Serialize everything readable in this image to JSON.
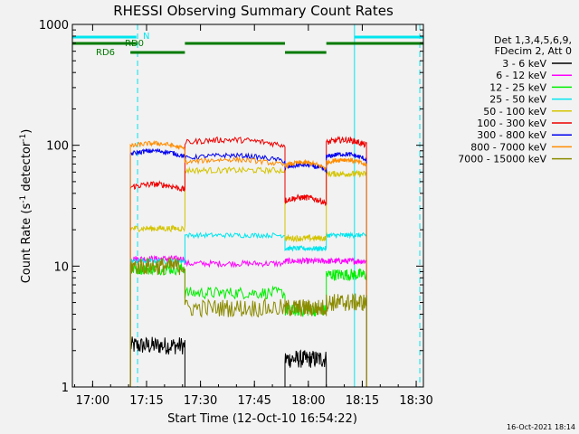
{
  "chart_data": {
    "type": "line",
    "title": "RHESSI Observing Summary Count Rates",
    "xlabel": "Start Time (12-Oct-10 16:54:22)",
    "ylabel_main": "Count Rate (s",
    "ylabel_sup1": "-1",
    "ylabel_mid": " detector",
    "ylabel_sup2": "-1",
    "ylabel_end": ")",
    "y_scale": "log",
    "xlim": [
      "16:54:22",
      "18:32:00"
    ],
    "ylim": [
      1,
      1000
    ],
    "x_ticks": [
      "17:00",
      "17:15",
      "17:30",
      "17:45",
      "18:00",
      "18:15",
      "18:30"
    ],
    "y_ticks": [
      "1",
      "10",
      "100",
      "1000"
    ],
    "legend_header": [
      "Det 1,3,4,5,6,9,",
      "FDecim 2, Att 0"
    ],
    "legend_placement": "right",
    "footer_date": "16-Oct-2021 18:14",
    "flag_labels": [
      "N",
      "RD0",
      "RD6"
    ],
    "series": [
      {
        "name": "3 - 6 keV",
        "color": "#000000"
      },
      {
        "name": "6 - 12 keV",
        "color": "#ff00ff"
      },
      {
        "name": "12 - 25 keV",
        "color": "#00ee00"
      },
      {
        "name": "25 - 50 keV",
        "color": "#00e5ee"
      },
      {
        "name": "50 - 100 keV",
        "color": "#d4c400"
      },
      {
        "name": "100 - 300 keV",
        "color": "#ee0000"
      },
      {
        "name": "300 - 800 keV",
        "color": "#0000ee"
      },
      {
        "name": "800 - 7000 keV",
        "color": "#ff8c00"
      },
      {
        "name": "7000 - 15000 keV",
        "color": "#8b8b00"
      }
    ],
    "segments": [
      {
        "start": "17:10:30",
        "end": "17:25:40",
        "values": [
          2.2,
          11.5,
          9.5,
          11,
          20.5,
          45,
          85,
          98,
          10
        ]
      },
      {
        "start": "17:25:40",
        "end": "17:53:30",
        "values": [
          1,
          10.5,
          6,
          18,
          62,
          105,
          78,
          72,
          4.5
        ]
      },
      {
        "start": "17:53:30",
        "end": "18:05:00",
        "values": [
          1.7,
          11,
          4.3,
          14,
          17,
          35,
          65,
          68,
          4.5
        ]
      },
      {
        "start": "18:05:00",
        "end": "18:16:10",
        "values": [
          1,
          11,
          8.5,
          18,
          58,
          105,
          80,
          72,
          5
        ]
      }
    ],
    "flags": [
      {
        "name": "N",
        "color": "#00e5ee",
        "ranges": [
          [
            "16:54:22",
            "17:12:10"
          ],
          [
            "18:12:50",
            "18:32:00"
          ]
        ]
      },
      {
        "name": "RD0",
        "color": "#007a00",
        "ranges": [
          [
            "16:54:22",
            "17:12:10"
          ],
          [
            "17:25:40",
            "17:53:30"
          ],
          [
            "18:05:00",
            "18:32:00"
          ]
        ]
      },
      {
        "name": "RD6",
        "color": "#007a00",
        "ranges": [
          [
            "17:10:30",
            "17:25:40"
          ],
          [
            "17:53:30",
            "18:05:00"
          ]
        ]
      }
    ],
    "vlines_solid": [
      "18:12:50"
    ],
    "vlines_dashed": [
      "17:12:30",
      "18:31:00"
    ],
    "grid": false
  }
}
